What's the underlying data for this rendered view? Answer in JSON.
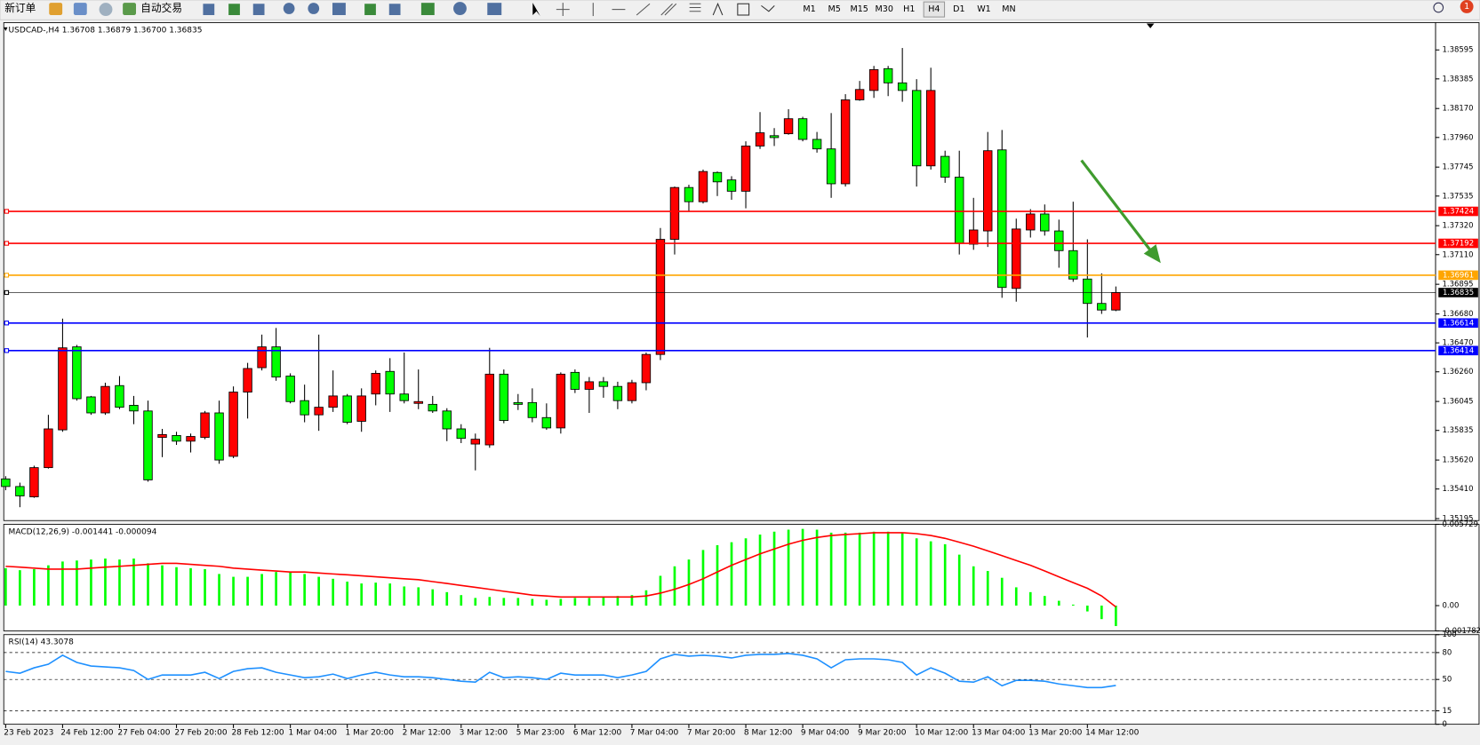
{
  "toolbar": {
    "new_order": "新订单",
    "auto_trading": "自动交易",
    "timeframes": [
      "M1",
      "M5",
      "M15",
      "M30",
      "H1",
      "H4",
      "D1",
      "W1",
      "MN"
    ],
    "active_timeframe": "H4",
    "notification": "1"
  },
  "chart_data": [
    {
      "type": "candlestick",
      "title": "USDCAD-,H4 1.36708 1.36879 1.36700 1.36835",
      "categories": [
        "23 Feb 2023",
        null,
        null,
        null,
        "24 Feb 12:00",
        null,
        null,
        null,
        "27 Feb 04:00",
        null,
        null,
        null,
        "27 Feb 20:00",
        null,
        null,
        null,
        "28 Feb 12:00",
        null,
        null,
        null,
        "1 Mar 04:00",
        null,
        null,
        null,
        "1 Mar 20:00",
        null,
        null,
        null,
        "2 Mar 12:00",
        null,
        null,
        null,
        "3 Mar 12:00",
        null,
        null,
        null,
        "5 Mar 23:00",
        null,
        null,
        null,
        "6 Mar 12:00",
        null,
        null,
        null,
        "7 Mar 04:00",
        null,
        null,
        null,
        "7 Mar 20:00",
        null,
        null,
        null,
        "8 Mar 12:00",
        null,
        null,
        null,
        "9 Mar 04:00",
        null,
        null,
        null,
        "9 Mar 20:00",
        null,
        null,
        null,
        "10 Mar 12:00",
        null,
        null,
        null,
        "13 Mar 04:00",
        null,
        null,
        null,
        "13 Mar 20:00",
        null,
        null,
        null,
        "14 Mar 12:00",
        null,
        null
      ],
      "open": [
        1.35483,
        1.35428,
        1.35353,
        1.35565,
        1.35839,
        1.36441,
        1.36078,
        1.35962,
        1.3616,
        1.36017,
        1.35976,
        1.35784,
        1.35798,
        1.35757,
        1.35784,
        1.35962,
        1.35647,
        1.36113,
        1.3629,
        1.36441,
        1.36229,
        1.36051,
        1.35948,
        1.36003,
        1.36085,
        1.35901,
        1.36099,
        1.36263,
        1.36099,
        1.36031,
        1.36024,
        1.35976,
        1.35846,
        1.35736,
        1.3573,
        1.36243,
        1.36037,
        1.36037,
        1.35928,
        1.35853,
        1.36256,
        1.36133,
        1.36188,
        1.36154,
        1.36051,
        1.36181,
        1.36386,
        1.37221,
        1.37597,
        1.37494,
        1.37706,
        1.37652,
        1.3757,
        1.37898,
        1.37973,
        1.37987,
        1.38096,
        1.37946,
        1.37877,
        1.37624,
        1.38233,
        1.38301,
        1.38459,
        1.38356,
        1.38301,
        1.37754,
        1.37823,
        1.37672,
        1.37186,
        1.37282,
        1.3787,
        1.36865,
        1.37289,
        1.37405,
        1.37282,
        1.37139,
        1.36933,
        1.36756,
        1.36708
      ],
      "high": [
        1.35503,
        1.35456,
        1.35579,
        1.35948,
        1.36646,
        1.36455,
        1.36085,
        1.36181,
        1.36229,
        1.36085,
        1.36051,
        1.35846,
        1.35825,
        1.35812,
        1.35976,
        1.36051,
        1.36154,
        1.36325,
        1.3653,
        1.36578,
        1.36249,
        1.36167,
        1.3653,
        1.3627,
        1.36099,
        1.3614,
        1.3627,
        1.36359,
        1.364,
        1.36277,
        1.36085,
        1.35996,
        1.3588,
        1.35812,
        1.36434,
        1.36277,
        1.36099,
        1.3614,
        1.36031,
        1.36256,
        1.36277,
        1.36222,
        1.36222,
        1.36188,
        1.36202,
        1.364,
        1.37303,
        1.37604,
        1.37617,
        1.37727,
        1.37713,
        1.37679,
        1.37932,
        1.38144,
        1.38028,
        1.38165,
        1.3811,
        1.38,
        1.38137,
        1.38274,
        1.3837,
        1.38479,
        1.38479,
        1.38609,
        1.38383,
        1.38466,
        1.37864,
        1.37864,
        1.37522,
        1.38,
        1.38014,
        1.37371,
        1.3744,
        1.37474,
        1.37364,
        1.37494,
        1.37221,
        1.36974,
        1.36879
      ],
      "low": [
        1.35401,
        1.35278,
        1.35346,
        1.35558,
        1.35825,
        1.36051,
        1.35948,
        1.35948,
        1.35989,
        1.3588,
        1.35463,
        1.35641,
        1.3573,
        1.35675,
        1.35771,
        1.35593,
        1.35634,
        1.35921,
        1.3627,
        1.36195,
        1.36031,
        1.35894,
        1.35832,
        1.35969,
        1.3588,
        1.35825,
        1.36017,
        1.35969,
        1.36031,
        1.35989,
        1.35962,
        1.35757,
        1.35743,
        1.35545,
        1.35709,
        1.35887,
        1.35983,
        1.35894,
        1.35839,
        1.35812,
        1.36106,
        1.35962,
        1.36072,
        1.35989,
        1.36031,
        1.36126,
        1.36345,
        1.37111,
        1.37426,
        1.37481,
        1.37535,
        1.37508,
        1.37446,
        1.37877,
        1.37898,
        1.3798,
        1.37932,
        1.3785,
        1.37522,
        1.37604,
        1.38226,
        1.38247,
        1.3826,
        1.38219,
        1.37604,
        1.37727,
        1.37631,
        1.37111,
        1.37145,
        1.37166,
        1.36797,
        1.36769,
        1.37234,
        1.37248,
        1.37015,
        1.36913,
        1.36509,
        1.3668,
        1.367
      ],
      "close": [
        1.35428,
        1.3536,
        1.35565,
        1.35846,
        1.36434,
        1.36065,
        1.35962,
        1.36154,
        1.36003,
        1.35976,
        1.35476,
        1.35805,
        1.35757,
        1.35791,
        1.35962,
        1.3562,
        1.36113,
        1.36284,
        1.36441,
        1.36222,
        1.36044,
        1.35948,
        1.36003,
        1.36085,
        1.35894,
        1.36085,
        1.36249,
        1.36099,
        1.36051,
        1.36044,
        1.35976,
        1.35846,
        1.35777,
        1.35771,
        1.36243,
        1.35907,
        1.36024,
        1.35928,
        1.35853,
        1.36243,
        1.36133,
        1.36188,
        1.36154,
        1.36051,
        1.36181,
        1.36386,
        1.37221,
        1.37597,
        1.37494,
        1.37713,
        1.37638,
        1.3757,
        1.37898,
        1.37994,
        1.37959,
        1.38096,
        1.37946,
        1.37877,
        1.37624,
        1.38233,
        1.38308,
        1.38452,
        1.38356,
        1.38301,
        1.37754,
        1.38301,
        1.37672,
        1.37193,
        1.37289,
        1.37864,
        1.36872,
        1.37296,
        1.37405,
        1.37282,
        1.37139,
        1.36933,
        1.36756,
        1.36708,
        1.36835
      ],
      "up_color": "#ff0000",
      "down_color": "#00ff00",
      "ylim": [
        1.35181,
        1.38793
      ],
      "yticks": [
        1.38595,
        1.38385,
        {
          "value": 1.3817,
          "label": "1.38170"
        },
        {
          "value": 1.3796,
          "label": "1.37960"
        },
        1.37745,
        1.37535,
        {
          "value": 1.3732,
          "label": "1.37320"
        },
        {
          "value": 1.3711,
          "label": "1.37110"
        },
        1.36895,
        {
          "value": 1.3668,
          "label": "1.36680"
        },
        {
          "value": 1.3647,
          "label": "1.36470"
        },
        {
          "value": 1.3626,
          "label": "1.36260"
        },
        1.36045,
        1.35835,
        {
          "value": 1.3562,
          "label": "1.35620"
        },
        {
          "value": 1.3541,
          "label": "1.35410"
        },
        1.35195
      ],
      "grid": false,
      "hlines": [
        {
          "value": 1.37424,
          "color": "#ff0000"
        },
        {
          "value": 1.37192,
          "color": "#ff0000"
        },
        {
          "value": 1.36961,
          "color": "#ffa500"
        },
        {
          "value": 1.36614,
          "color": "#0000ff"
        },
        {
          "value": 1.36414,
          "color": "#0000ff"
        }
      ],
      "last_price": 1.36835,
      "last_price_color": "#000000"
    },
    {
      "type": "macd",
      "title": "MACD(12,26,9) -0.001441 -0.000094",
      "histogram": {
        "color": "#00ff00",
        "values": [
          0.00264,
          0.0025,
          0.00257,
          0.00284,
          0.00311,
          0.00318,
          0.00325,
          0.00332,
          0.00325,
          0.00332,
          0.00298,
          0.00284,
          0.00271,
          0.00264,
          0.00257,
          0.00223,
          0.00203,
          0.00203,
          0.00223,
          0.00237,
          0.00237,
          0.00223,
          0.00203,
          0.00189,
          0.00169,
          0.00156,
          0.00162,
          0.00156,
          0.00135,
          0.00129,
          0.00115,
          0.00095,
          0.00074,
          0.00054,
          0.00061,
          0.00054,
          0.00054,
          0.00047,
          0.00041,
          0.00047,
          0.00054,
          0.00054,
          0.00061,
          0.00068,
          0.00074,
          0.00108,
          0.0021,
          0.00277,
          0.00325,
          0.00392,
          0.00426,
          0.00447,
          0.00474,
          0.00501,
          0.00521,
          0.00535,
          0.00541,
          0.00535,
          0.00514,
          0.00514,
          0.00514,
          0.00521,
          0.00521,
          0.00514,
          0.00474,
          0.00453,
          0.00433,
          0.00359,
          0.00277,
          0.00244,
          0.00196,
          0.00129,
          0.00095,
          0.00068,
          0.00034,
          7e-05,
          -0.00041,
          -0.00095,
          -0.001441
        ]
      },
      "signal": {
        "color": "#ff0000",
        "values": [
          0.00277,
          0.00271,
          0.00264,
          0.00257,
          0.00257,
          0.00257,
          0.00264,
          0.00271,
          0.00277,
          0.00284,
          0.00291,
          0.00298,
          0.00298,
          0.00291,
          0.00284,
          0.00277,
          0.00264,
          0.00257,
          0.0025,
          0.00244,
          0.00237,
          0.00237,
          0.0023,
          0.00223,
          0.00217,
          0.0021,
          0.00203,
          0.00196,
          0.00189,
          0.00183,
          0.00169,
          0.00156,
          0.00142,
          0.00129,
          0.00115,
          0.00101,
          0.00088,
          0.00074,
          0.00068,
          0.00061,
          0.00061,
          0.00061,
          0.00061,
          0.00061,
          0.00061,
          0.00068,
          0.00088,
          0.00115,
          0.00149,
          0.00189,
          0.00237,
          0.00284,
          0.00325,
          0.00365,
          0.00399,
          0.00433,
          0.0046,
          0.0048,
          0.00494,
          0.00501,
          0.00507,
          0.00514,
          0.00514,
          0.00514,
          0.00507,
          0.00494,
          0.00474,
          0.00447,
          0.00419,
          0.00386,
          0.00352,
          0.00318,
          0.00284,
          0.00244,
          0.00203,
          0.00162,
          0.00122,
          0.00068,
          -9.4e-05
        ]
      },
      "ylim": [
        -0.001782,
        0.005729
      ],
      "yticks": [
        0.005729,
        {
          "value": 0,
          "label": "0.00"
        },
        -0.001782
      ]
    },
    {
      "type": "line",
      "title": "RSI(14) 43.3078",
      "color": "#1e90ff",
      "values": [
        59,
        57,
        63,
        67,
        77,
        69,
        65,
        64,
        63,
        60,
        50,
        55,
        55,
        55,
        58,
        51,
        59,
        62,
        63,
        58,
        55,
        52,
        53,
        56,
        51,
        55,
        58,
        55,
        53,
        53,
        52,
        50,
        48,
        47,
        58,
        52,
        53,
        52,
        50,
        57,
        55,
        55,
        55,
        52,
        55,
        59,
        73,
        78,
        76,
        77,
        76,
        74,
        77,
        78,
        78,
        79,
        77,
        73,
        63,
        72,
        73,
        73,
        72,
        69,
        55,
        63,
        57,
        48,
        47,
        53,
        43,
        49,
        49,
        48,
        45,
        43,
        41,
        41,
        43.3078
      ],
      "ylim": [
        0,
        100
      ],
      "yticks": [
        100,
        80,
        50,
        15,
        0
      ],
      "levels": [
        80,
        50,
        15
      ]
    }
  ]
}
